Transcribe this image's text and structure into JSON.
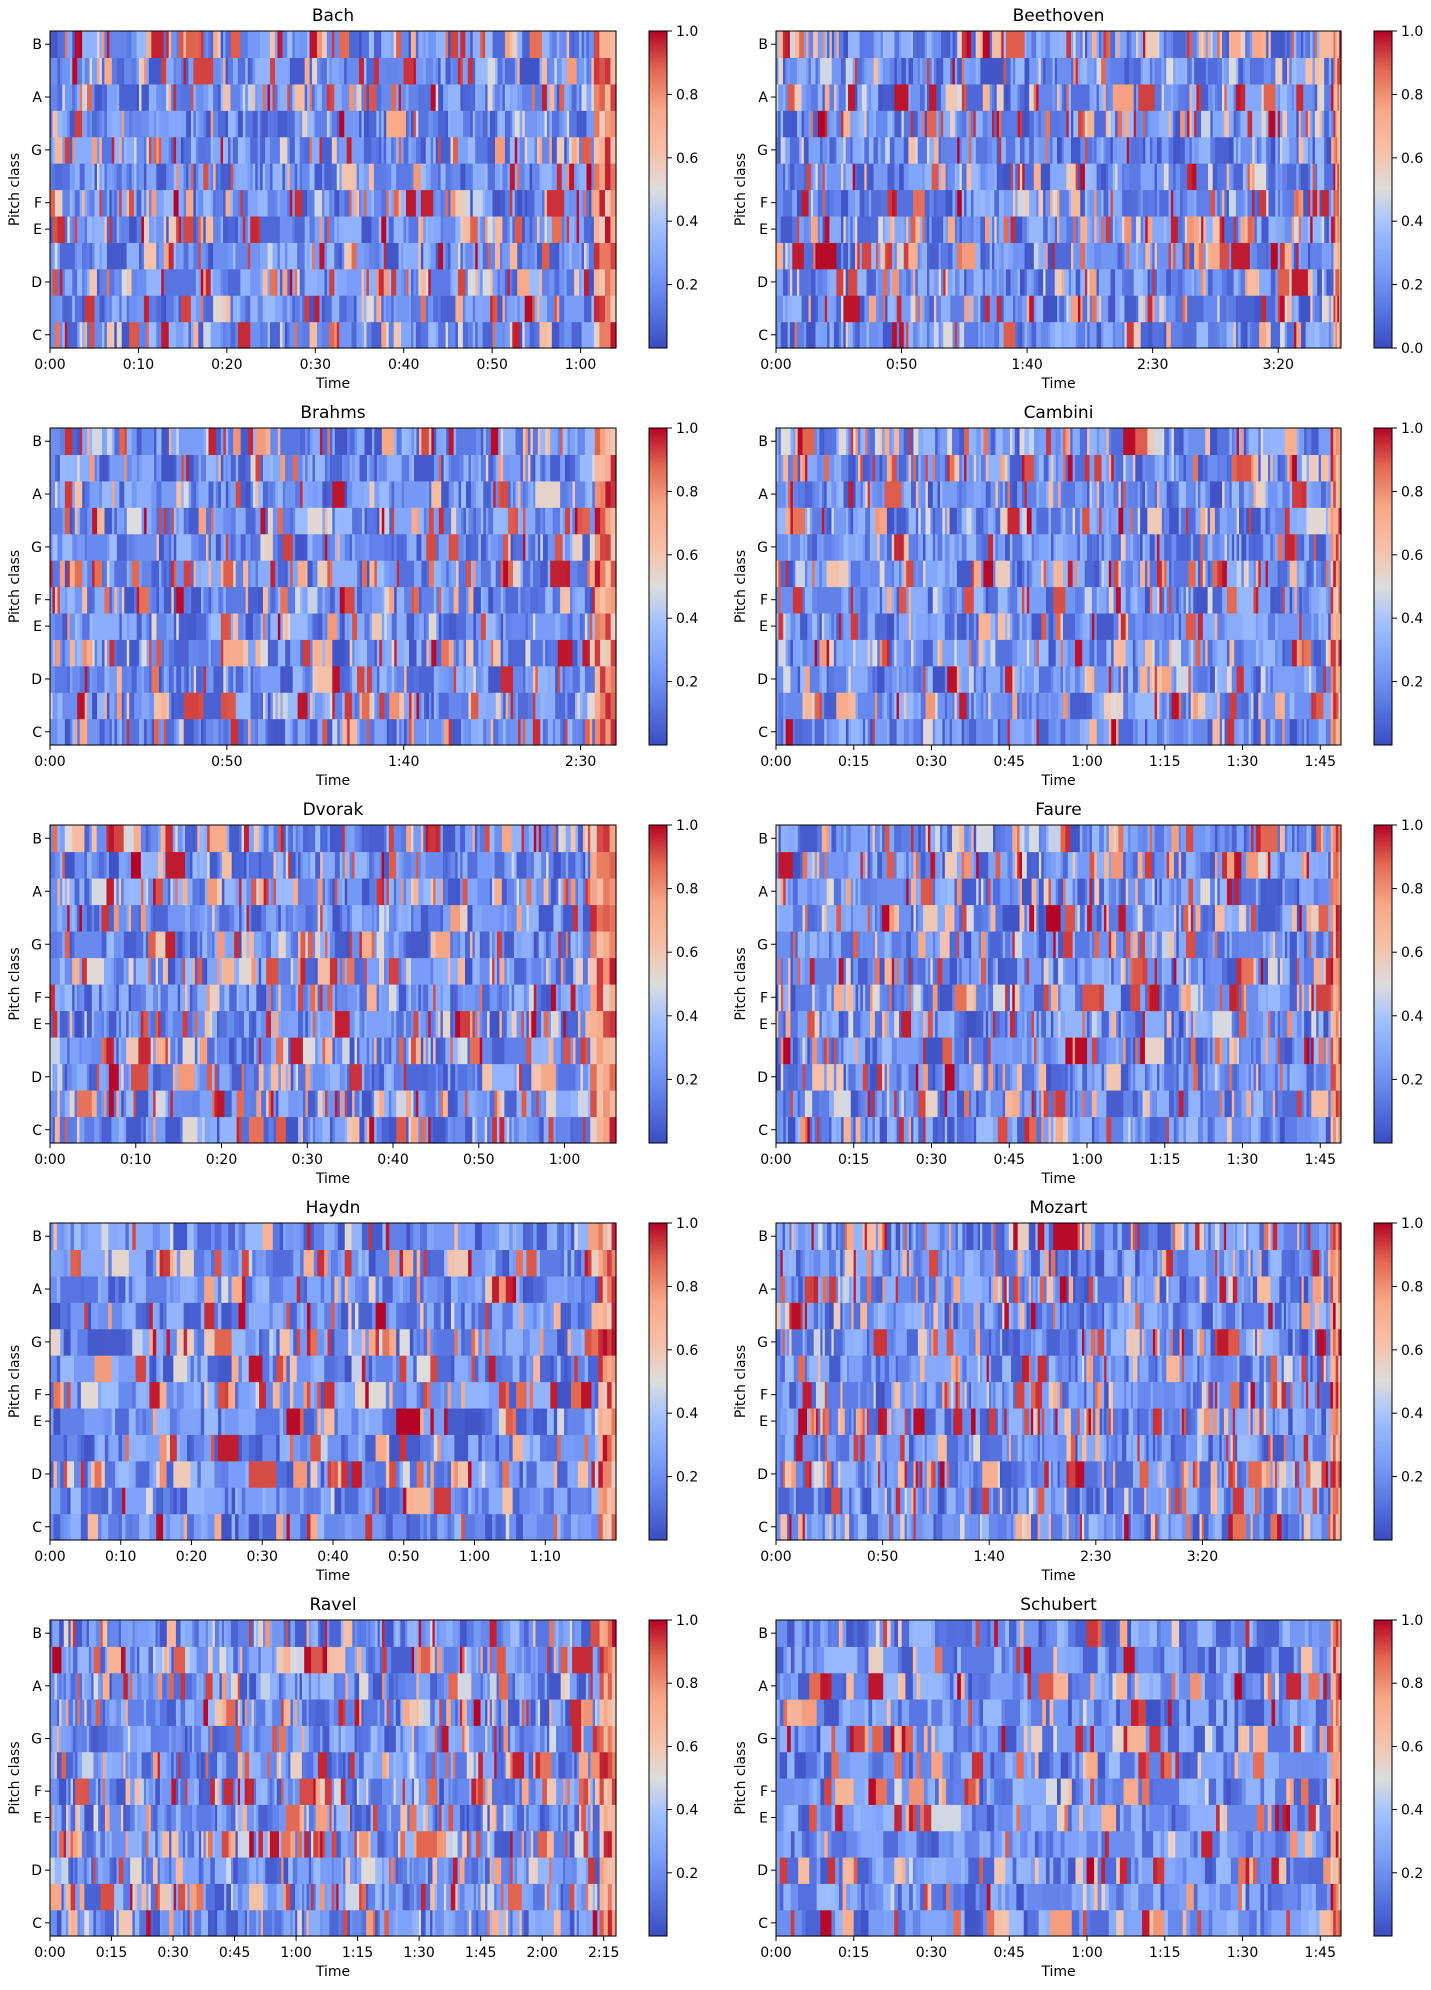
{
  "figure": {
    "colormap": "coolwarm",
    "colorbar_label_color": "#000000",
    "colors": {
      "low": "#3b4cc0",
      "mid": "#dddddd",
      "high": "#b40426"
    }
  },
  "chart_data": [
    {
      "type": "heatmap",
      "title": "Bach",
      "xlabel": "Time",
      "ylabel": "Pitch class",
      "duration_seconds": 64,
      "x_tick_values_seconds": [
        0,
        10,
        20,
        30,
        40,
        50,
        60
      ],
      "x_tick_labels": [
        "0:00",
        "0:10",
        "0:20",
        "0:30",
        "0:40",
        "0:50",
        "1:00"
      ],
      "y_rows": 12,
      "y_tick_rows": [
        0,
        2,
        4,
        5,
        7,
        9,
        11
      ],
      "y_tick_labels": [
        "C",
        "D",
        "E",
        "F",
        "G",
        "A",
        "B"
      ],
      "value_range": [
        0,
        1
      ],
      "colorbar_ticks": [
        0.2,
        0.4,
        0.6,
        0.8,
        1.0
      ],
      "colorbar_tick_labels": [
        "0.2",
        "0.4",
        "0.6",
        "0.8",
        "1.0"
      ],
      "tail_seconds": 2.5,
      "strong_rows": [
        0,
        2,
        4,
        5,
        7,
        9,
        11
      ],
      "n_frames": 220,
      "seed": 11
    },
    {
      "type": "heatmap",
      "title": "Beethoven",
      "xlabel": "Time",
      "ylabel": "Pitch class",
      "duration_seconds": 225,
      "x_tick_values_seconds": [
        0,
        50,
        100,
        150,
        200
      ],
      "x_tick_labels": [
        "0:00",
        "0:50",
        "1:40",
        "2:30",
        "3:20"
      ],
      "y_rows": 12,
      "y_tick_rows": [
        0,
        2,
        4,
        5,
        7,
        9,
        11
      ],
      "y_tick_labels": [
        "C",
        "D",
        "E",
        "F",
        "G",
        "A",
        "B"
      ],
      "value_range": [
        0,
        1
      ],
      "colorbar_ticks": [
        0.0,
        0.2,
        0.4,
        0.6,
        0.8,
        1.0
      ],
      "colorbar_tick_labels": [
        "0.0",
        "0.2",
        "0.4",
        "0.6",
        "0.8",
        "1.0"
      ],
      "tail_seconds": 3,
      "strong_rows": [
        1,
        3,
        4,
        8,
        9,
        11
      ],
      "n_frames": 240,
      "seed": 23
    },
    {
      "type": "heatmap",
      "title": "Brahms",
      "xlabel": "Time",
      "ylabel": "Pitch class",
      "duration_seconds": 160,
      "x_tick_values_seconds": [
        0,
        50,
        100,
        150
      ],
      "x_tick_labels": [
        "0:00",
        "0:50",
        "1:40",
        "2:30"
      ],
      "y_rows": 12,
      "y_tick_rows": [
        0,
        2,
        4,
        5,
        7,
        9,
        11
      ],
      "y_tick_labels": [
        "C",
        "D",
        "E",
        "F",
        "G",
        "A",
        "B"
      ],
      "value_range": [
        0,
        1
      ],
      "colorbar_ticks": [
        0.2,
        0.4,
        0.6,
        0.8,
        1.0
      ],
      "colorbar_tick_labels": [
        "0.2",
        "0.4",
        "0.6",
        "0.8",
        "1.0"
      ],
      "tail_seconds": 6,
      "strong_rows": [
        1,
        3,
        6,
        8,
        11
      ],
      "n_frames": 220,
      "seed": 37
    },
    {
      "type": "heatmap",
      "title": "Cambini",
      "xlabel": "Time",
      "ylabel": "Pitch class",
      "duration_seconds": 109,
      "x_tick_values_seconds": [
        0,
        15,
        30,
        45,
        60,
        75,
        90,
        105
      ],
      "x_tick_labels": [
        "0:00",
        "0:15",
        "0:30",
        "0:45",
        "1:00",
        "1:15",
        "1:30",
        "1:45"
      ],
      "y_rows": 12,
      "y_tick_rows": [
        0,
        2,
        4,
        5,
        7,
        9,
        11
      ],
      "y_tick_labels": [
        "C",
        "D",
        "E",
        "F",
        "G",
        "A",
        "B"
      ],
      "value_range": [
        0,
        1
      ],
      "colorbar_ticks": [
        0.2,
        0.4,
        0.6,
        0.8,
        1.0
      ],
      "colorbar_tick_labels": [
        "0.2",
        "0.4",
        "0.6",
        "0.8",
        "1.0"
      ],
      "tail_seconds": 2,
      "strong_rows": [
        1,
        3,
        5,
        6,
        8,
        10,
        11
      ],
      "n_frames": 230,
      "seed": 51
    },
    {
      "type": "heatmap",
      "title": "Dvorak",
      "xlabel": "Time",
      "ylabel": "Pitch class",
      "duration_seconds": 66,
      "x_tick_values_seconds": [
        0,
        10,
        20,
        30,
        40,
        50,
        60
      ],
      "x_tick_labels": [
        "0:00",
        "0:10",
        "0:20",
        "0:30",
        "0:40",
        "0:50",
        "1:00"
      ],
      "y_rows": 12,
      "y_tick_rows": [
        0,
        2,
        4,
        5,
        7,
        9,
        11
      ],
      "y_tick_labels": [
        "C",
        "D",
        "E",
        "F",
        "G",
        "A",
        "B"
      ],
      "value_range": [
        0,
        1
      ],
      "colorbar_ticks": [
        0.2,
        0.4,
        0.6,
        0.8,
        1.0
      ],
      "colorbar_tick_labels": [
        "0.2",
        "0.4",
        "0.6",
        "0.8",
        "1.0"
      ],
      "tail_seconds": 3,
      "strong_rows": [
        1,
        3,
        4,
        6,
        9,
        11
      ],
      "n_frames": 220,
      "seed": 67
    },
    {
      "type": "heatmap",
      "title": "Faure",
      "xlabel": "Time",
      "ylabel": "Pitch class",
      "duration_seconds": 109,
      "x_tick_values_seconds": [
        0,
        15,
        30,
        45,
        60,
        75,
        90,
        105
      ],
      "x_tick_labels": [
        "0:00",
        "0:15",
        "0:30",
        "0:45",
        "1:00",
        "1:15",
        "1:30",
        "1:45"
      ],
      "y_rows": 12,
      "y_tick_rows": [
        0,
        2,
        4,
        5,
        7,
        9,
        11
      ],
      "y_tick_labels": [
        "C",
        "D",
        "E",
        "F",
        "G",
        "A",
        "B"
      ],
      "value_range": [
        0,
        1
      ],
      "colorbar_ticks": [
        0.2,
        0.4,
        0.6,
        0.8,
        1.0
      ],
      "colorbar_tick_labels": [
        "0.2",
        "0.4",
        "0.6",
        "0.8",
        "1.0"
      ],
      "tail_seconds": 2,
      "strong_rows": [
        1,
        3,
        5,
        6,
        8,
        10,
        11
      ],
      "n_frames": 230,
      "seed": 79
    },
    {
      "type": "heatmap",
      "title": "Haydn",
      "xlabel": "Time",
      "ylabel": "Pitch class",
      "duration_seconds": 80,
      "x_tick_values_seconds": [
        0,
        10,
        20,
        30,
        40,
        50,
        60,
        70
      ],
      "x_tick_labels": [
        "0:00",
        "0:10",
        "0:20",
        "0:30",
        "0:40",
        "0:50",
        "1:00",
        "1:10"
      ],
      "y_rows": 12,
      "y_tick_rows": [
        0,
        2,
        4,
        5,
        7,
        9,
        11
      ],
      "y_tick_labels": [
        "C",
        "D",
        "E",
        "F",
        "G",
        "A",
        "B"
      ],
      "value_range": [
        0,
        1
      ],
      "colorbar_ticks": [
        0.2,
        0.4,
        0.6,
        0.8,
        1.0
      ],
      "colorbar_tick_labels": [
        "0.2",
        "0.4",
        "0.6",
        "0.8",
        "1.0"
      ],
      "tail_seconds": 2.5,
      "strong_rows": [
        2,
        5,
        7,
        10
      ],
      "n_frames": 160,
      "seed": 83
    },
    {
      "type": "heatmap",
      "title": "Mozart",
      "xlabel": "Time",
      "ylabel": "Pitch class",
      "duration_seconds": 265,
      "x_tick_values_seconds": [
        0,
        50,
        100,
        150,
        200
      ],
      "x_tick_labels": [
        "0:00",
        "0:50",
        "1:40",
        "2:30",
        "3:20"
      ],
      "y_rows": 12,
      "y_tick_rows": [
        0,
        2,
        4,
        5,
        7,
        9,
        11
      ],
      "y_tick_labels": [
        "C",
        "D",
        "E",
        "F",
        "G",
        "A",
        "B"
      ],
      "value_range": [
        0,
        1
      ],
      "colorbar_ticks": [
        0.2,
        0.4,
        0.6,
        0.8,
        1.0
      ],
      "colorbar_tick_labels": [
        "0.2",
        "0.4",
        "0.6",
        "0.8",
        "1.0"
      ],
      "tail_seconds": 5,
      "strong_rows": [
        0,
        2,
        4,
        5,
        7,
        9,
        11
      ],
      "n_frames": 250,
      "seed": 97
    },
    {
      "type": "heatmap",
      "title": "Ravel",
      "xlabel": "Time",
      "ylabel": "Pitch class",
      "duration_seconds": 138,
      "x_tick_values_seconds": [
        0,
        15,
        30,
        45,
        60,
        75,
        90,
        105,
        120,
        135
      ],
      "x_tick_labels": [
        "0:00",
        "0:15",
        "0:30",
        "0:45",
        "1:00",
        "1:15",
        "1:30",
        "1:45",
        "2:00",
        "2:15"
      ],
      "y_rows": 12,
      "y_tick_rows": [
        0,
        2,
        4,
        5,
        7,
        9,
        11
      ],
      "y_tick_labels": [
        "C",
        "D",
        "E",
        "F",
        "G",
        "A",
        "B"
      ],
      "value_range": [
        0,
        1
      ],
      "colorbar_ticks": [
        0.2,
        0.4,
        0.6,
        0.8,
        1.0
      ],
      "colorbar_tick_labels": [
        "0.2",
        "0.4",
        "0.6",
        "0.8",
        "1.0"
      ],
      "tail_seconds": 4,
      "strong_rows": [
        1,
        3,
        5,
        6,
        8,
        10
      ],
      "n_frames": 240,
      "seed": 113
    },
    {
      "type": "heatmap",
      "title": "Schubert",
      "xlabel": "Time",
      "ylabel": "Pitch class",
      "duration_seconds": 109,
      "x_tick_values_seconds": [
        0,
        15,
        30,
        45,
        60,
        75,
        90,
        105
      ],
      "x_tick_labels": [
        "0:00",
        "0:15",
        "0:30",
        "0:45",
        "1:00",
        "1:15",
        "1:30",
        "1:45"
      ],
      "y_rows": 12,
      "y_tick_rows": [
        0,
        2,
        4,
        5,
        7,
        9,
        11
      ],
      "y_tick_labels": [
        "C",
        "D",
        "E",
        "F",
        "G",
        "A",
        "B"
      ],
      "value_range": [
        0,
        1
      ],
      "colorbar_ticks": [
        0.2,
        0.4,
        0.6,
        0.8,
        1.0
      ],
      "colorbar_tick_labels": [
        "0.2",
        "0.4",
        "0.6",
        "0.8",
        "1.0"
      ],
      "tail_seconds": 2,
      "strong_rows": [
        0,
        2,
        4,
        5,
        7,
        9
      ],
      "n_frames": 150,
      "seed": 131
    }
  ]
}
